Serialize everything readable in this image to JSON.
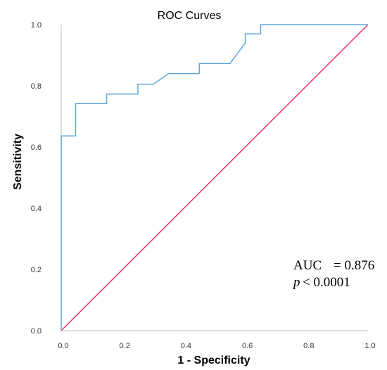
{
  "chart_data": {
    "type": "line",
    "title": "ROC Curves",
    "xlabel": "1 - Specificity",
    "ylabel": "Sensitivity",
    "xlim": [
      0,
      1
    ],
    "ylim": [
      0,
      1
    ],
    "x_ticks": [
      "0.0",
      "0.2",
      "0.4",
      "0.6",
      "0.8",
      "1.0"
    ],
    "y_ticks": [
      "0.0",
      "0.2",
      "0.4",
      "0.6",
      "0.8",
      "1.0"
    ],
    "grid": false,
    "series": [
      {
        "color": "#5fa8e0",
        "points": [
          [
            0.0,
            0.0
          ],
          [
            0.0,
            0.636
          ],
          [
            0.047,
            0.636
          ],
          [
            0.047,
            0.742
          ],
          [
            0.148,
            0.742
          ],
          [
            0.148,
            0.773
          ],
          [
            0.25,
            0.773
          ],
          [
            0.25,
            0.805
          ],
          [
            0.3,
            0.805
          ],
          [
            0.35,
            0.84
          ],
          [
            0.45,
            0.84
          ],
          [
            0.45,
            0.873
          ],
          [
            0.55,
            0.873
          ],
          [
            0.6,
            0.94
          ],
          [
            0.6,
            0.97
          ],
          [
            0.65,
            0.97
          ],
          [
            0.65,
            1.0
          ],
          [
            1.0,
            1.0
          ]
        ]
      },
      {
        "color": "#e8336b",
        "points": [
          [
            0.0,
            0.0
          ],
          [
            1.0,
            1.0
          ]
        ]
      }
    ],
    "annotations": {
      "auc_label": "AUC",
      "auc_value": "= 0.876",
      "p_label": "p",
      "p_value": "< 0.0001"
    }
  }
}
